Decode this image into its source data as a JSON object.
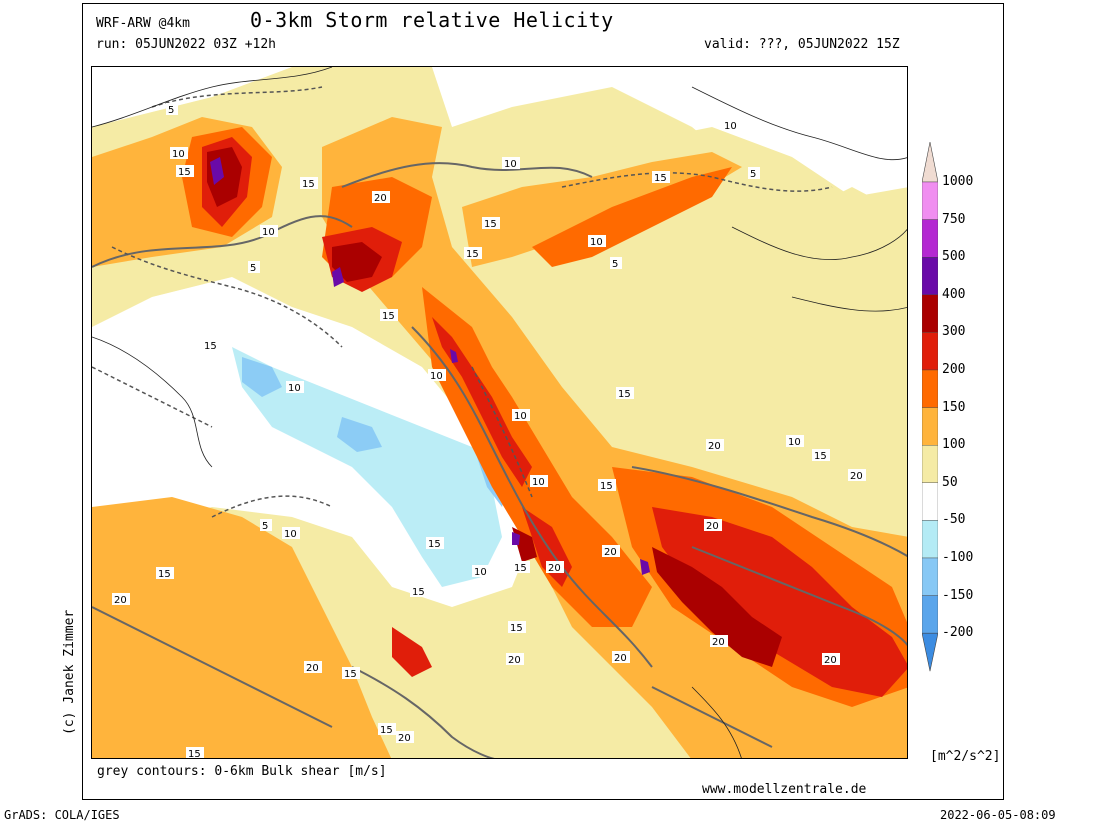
{
  "header": {
    "model": "WRF-ARW @4km",
    "title": "0-3km Storm relative Helicity",
    "run": "run: 05JUN2022 03Z +12h",
    "valid": "valid: ???, 05JUN2022 15Z"
  },
  "footer": {
    "contour_note": "grey contours: 0-6km Bulk shear [m/s]",
    "website": "www.modellzentrale.de",
    "grads": "GrADS: COLA/IGES",
    "timestamp": "2022-06-05-08:09",
    "copyright": "(c) Janek Zimmer"
  },
  "legend": {
    "unit": "[m^2/s^2]",
    "labels": [
      "1000",
      "750",
      "500",
      "400",
      "300",
      "200",
      "150",
      "100",
      "50",
      "-50",
      "-100",
      "-150",
      "-200"
    ],
    "colors": [
      "#f0dcd2",
      "#f08ef0",
      "#b428d2",
      "#6a0aa8",
      "#aa0000",
      "#e01e0a",
      "#ff6a00",
      "#ffb43c",
      "#f5eba5",
      "#ffffff",
      "#b4ebf5",
      "#87c8f5",
      "#5aa5eb",
      "#3c8ce1"
    ]
  },
  "contour_labels": [
    "5",
    "10",
    "15",
    "20"
  ]
}
